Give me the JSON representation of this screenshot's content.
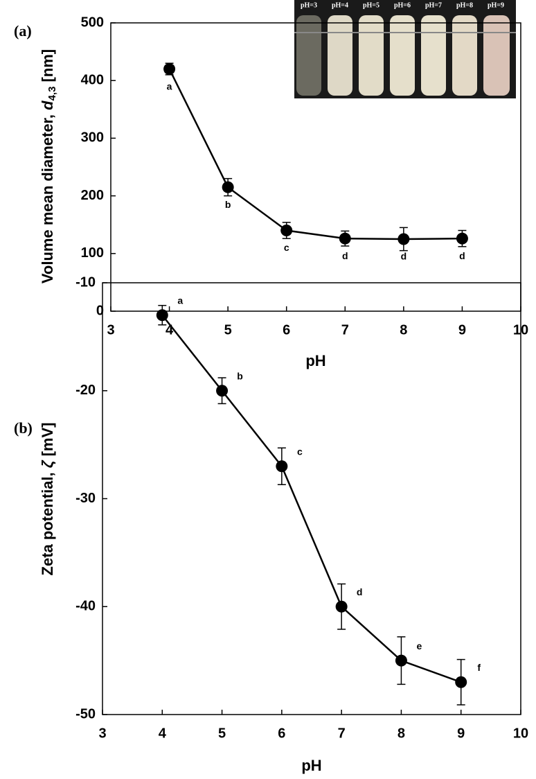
{
  "chart_data": [
    {
      "type": "line",
      "panel_label": "(a)",
      "y_label": {
        "text": "Volume mean diameter, ",
        "symbol": "d",
        "subscript": "4,3",
        "unit": "[nm]"
      },
      "x_label": "pH",
      "x": [
        4,
        5,
        6,
        7,
        8,
        9
      ],
      "values": [
        420,
        215,
        140,
        126,
        125,
        126
      ],
      "errors": [
        10,
        15,
        14,
        13,
        20,
        14
      ],
      "point_labels": [
        "a",
        "b",
        "c",
        "d",
        "d",
        "d"
      ],
      "color": "#000000",
      "xlim": [
        3,
        10
      ],
      "xticks": [
        3,
        4,
        5,
        6,
        7,
        8,
        9,
        10
      ],
      "ylim": [
        0,
        500
      ],
      "yticks": [
        0,
        100,
        200,
        300,
        400,
        500
      ],
      "inset_labels": [
        "pH=3",
        "pH=4",
        "pH=5",
        "pH=6",
        "pH=7",
        "pH=8",
        "pH=9"
      ]
    },
    {
      "type": "line",
      "panel_label": "(b)",
      "y_label": {
        "text": "Zeta potential, ",
        "symbol": "ζ",
        "unit": "[mV]"
      },
      "x_label": "pH",
      "x": [
        4,
        5,
        6,
        7,
        8,
        9
      ],
      "values": [
        -13,
        -20,
        -27,
        -40,
        -45,
        -47
      ],
      "errors": [
        0.9,
        1.2,
        1.7,
        2.1,
        2.2,
        2.1
      ],
      "point_labels": [
        "a",
        "b",
        "c",
        "d",
        "e",
        "f"
      ],
      "color": "#000000",
      "xlim": [
        3,
        10
      ],
      "xticks": [
        3,
        4,
        5,
        6,
        7,
        8,
        9,
        10
      ],
      "ylim": [
        -50,
        -10
      ],
      "yticks": [
        -50,
        -40,
        -30,
        -20,
        -10
      ]
    }
  ]
}
